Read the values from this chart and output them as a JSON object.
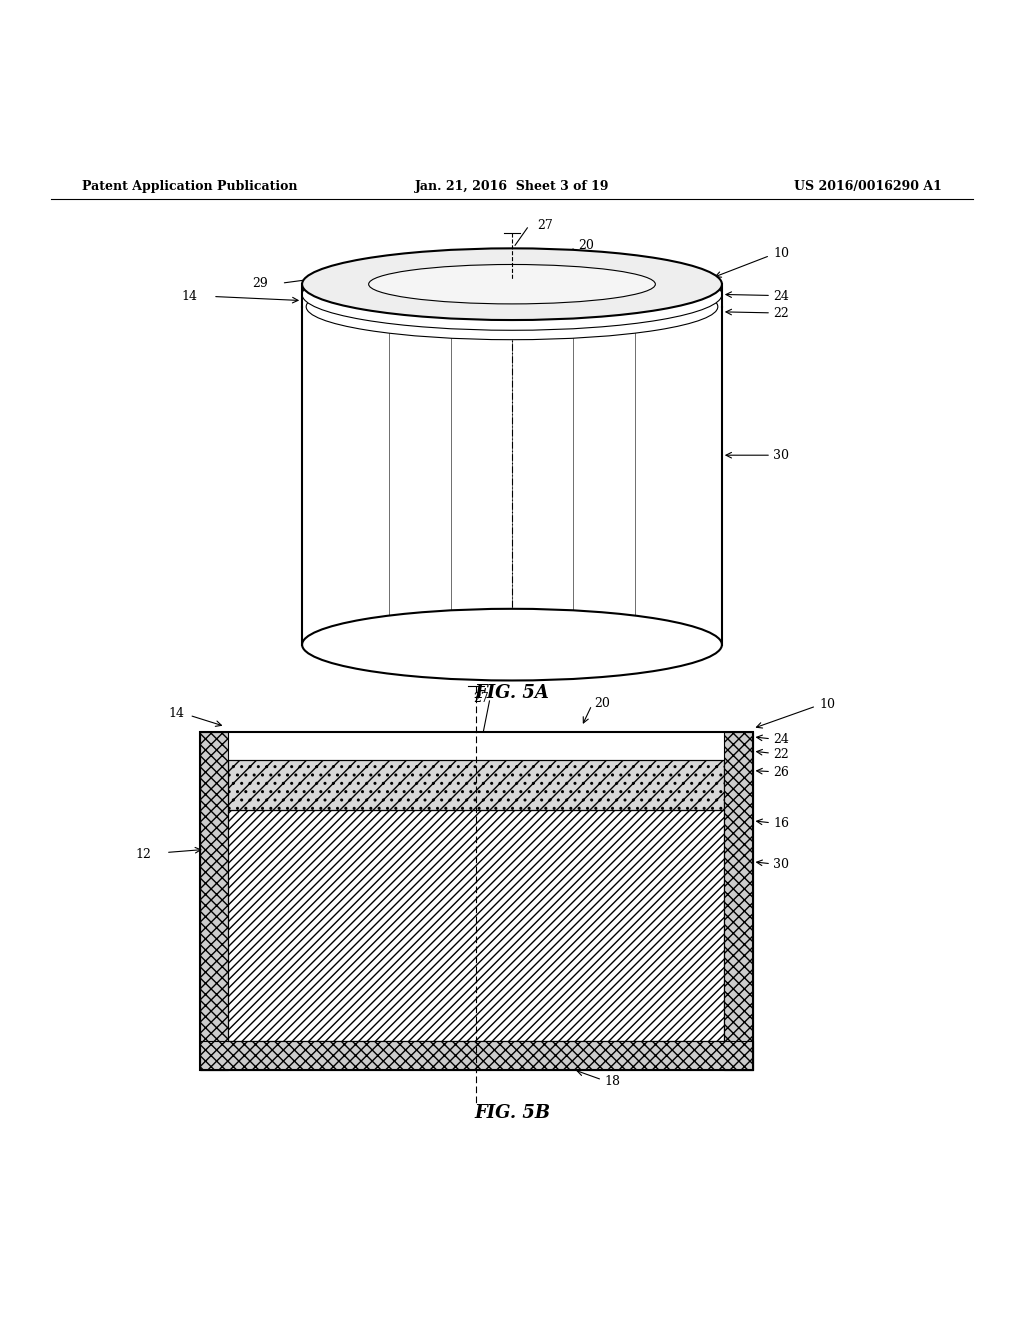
{
  "bg_color": "#ffffff",
  "line_color": "#000000",
  "header_left": "Patent Application Publication",
  "header_center": "Jan. 21, 2016  Sheet 3 of 19",
  "header_right": "US 2016/0016290 A1",
  "fig5a_label": "FIG. 5A",
  "fig5b_label": "FIG. 5B"
}
